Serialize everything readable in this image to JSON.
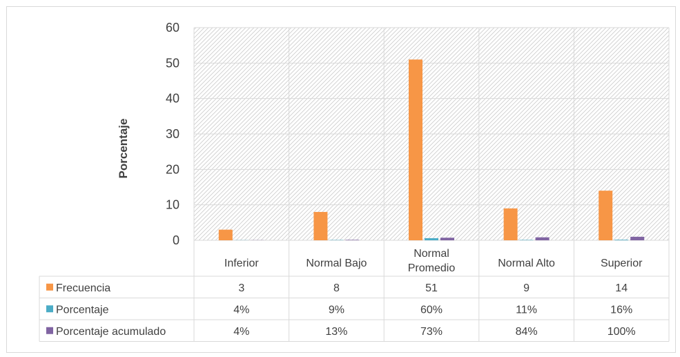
{
  "chart_data": {
    "type": "bar",
    "ylabel": "Porcentaje",
    "ylim": [
      0,
      60
    ],
    "yticks": [
      0,
      10,
      20,
      30,
      40,
      50,
      60
    ],
    "categories": [
      "Inferior",
      "Normal Bajo",
      "Normal Promedio",
      "Normal Alto",
      "Superior"
    ],
    "series": [
      {
        "name": "Frecuencia",
        "color": "#F79646",
        "values": [
          3,
          8,
          51,
          9,
          14
        ],
        "table_labels": [
          "3",
          "8",
          "51",
          "9",
          "14"
        ]
      },
      {
        "name": "Porcentaje",
        "color": "#4BACC6",
        "values": [
          0.04,
          0.09,
          0.6,
          0.11,
          0.16
        ],
        "table_labels": [
          "4%",
          "9%",
          "60%",
          "11%",
          "16%"
        ]
      },
      {
        "name": "Porcentaje acumulado",
        "color": "#8064A2",
        "values": [
          0.04,
          0.13,
          0.73,
          0.84,
          1.0
        ],
        "table_labels": [
          "4%",
          "13%",
          "73%",
          "84%",
          "100%"
        ]
      }
    ],
    "grid": true,
    "legend": "data-table"
  }
}
